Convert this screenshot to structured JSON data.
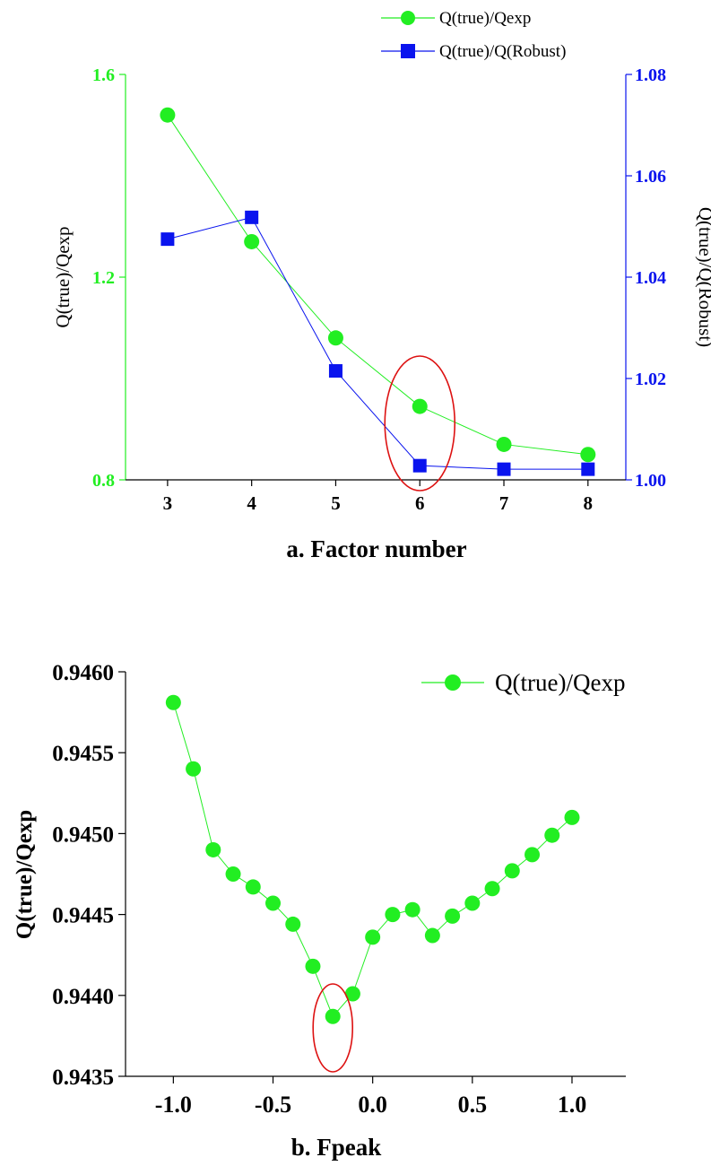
{
  "colors": {
    "green": "#22ee22",
    "blue": "#0a14ee",
    "red": "#dd1111",
    "axis": "#000000"
  },
  "chart_data": [
    {
      "type": "line",
      "title": "",
      "xlabel": "a. Factor number",
      "ylabel": "Q(true)/Qexp",
      "ylabel_right": "Q(true)/Q(Robust)",
      "x": [
        3,
        4,
        5,
        6,
        7,
        8
      ],
      "x_ticks": [
        "3",
        "4",
        "5",
        "6",
        "7",
        "8"
      ],
      "xlim": [
        2.5,
        8.45
      ],
      "ylim": [
        0.8,
        1.6
      ],
      "ylim_right": [
        1.0,
        1.08
      ],
      "y_ticks": [
        "0.8",
        "1.2",
        "1.6"
      ],
      "y_ticks_right": [
        "1.00",
        "1.02",
        "1.04",
        "1.06",
        "1.08"
      ],
      "series": [
        {
          "name": "Q(true)/Qexp",
          "axis": "left",
          "marker": "circle",
          "color": "#22ee22",
          "values": [
            1.52,
            1.27,
            1.08,
            0.945,
            0.87,
            0.85
          ]
        },
        {
          "name": "Q(true)/Q(Robust)",
          "axis": "right",
          "marker": "square",
          "color": "#0a14ee",
          "values": [
            1.0475,
            1.0518,
            1.0215,
            1.0028,
            1.0021,
            1.0021
          ]
        }
      ],
      "legend": "top-right",
      "highlight": {
        "x": 6,
        "shape": "ellipse",
        "color": "#dd1111"
      }
    },
    {
      "type": "line",
      "title": "",
      "xlabel": "b. Fpeak",
      "ylabel": "Q(true)/Qexp",
      "x": [
        -1.0,
        -0.9,
        -0.8,
        -0.7,
        -0.6,
        -0.5,
        -0.4,
        -0.3,
        -0.2,
        -0.1,
        0.0,
        0.1,
        0.2,
        0.3,
        0.4,
        0.5,
        0.6,
        0.7,
        0.8,
        0.9,
        1.0
      ],
      "x_ticks": [
        "-1.0",
        "-0.5",
        "0.0",
        "0.5",
        "1.0"
      ],
      "xlim": [
        -1.24,
        1.27
      ],
      "ylim": [
        0.9435,
        0.946
      ],
      "y_ticks": [
        "0.9435",
        "0.9440",
        "0.9445",
        "0.9450",
        "0.9455",
        "0.9460"
      ],
      "series": [
        {
          "name": "Q(true)/Qexp",
          "marker": "circle",
          "color": "#22ee22",
          "values": [
            0.94581,
            0.9454,
            0.9449,
            0.94475,
            0.94467,
            0.94457,
            0.94444,
            0.94418,
            0.94387,
            0.94401,
            0.94436,
            0.9445,
            0.94453,
            0.94437,
            0.94449,
            0.94457,
            0.94466,
            0.94477,
            0.94487,
            0.94499,
            0.9451
          ]
        }
      ],
      "legend": "top-right",
      "highlight": {
        "x": -0.2,
        "shape": "ellipse",
        "color": "#dd1111"
      }
    }
  ]
}
